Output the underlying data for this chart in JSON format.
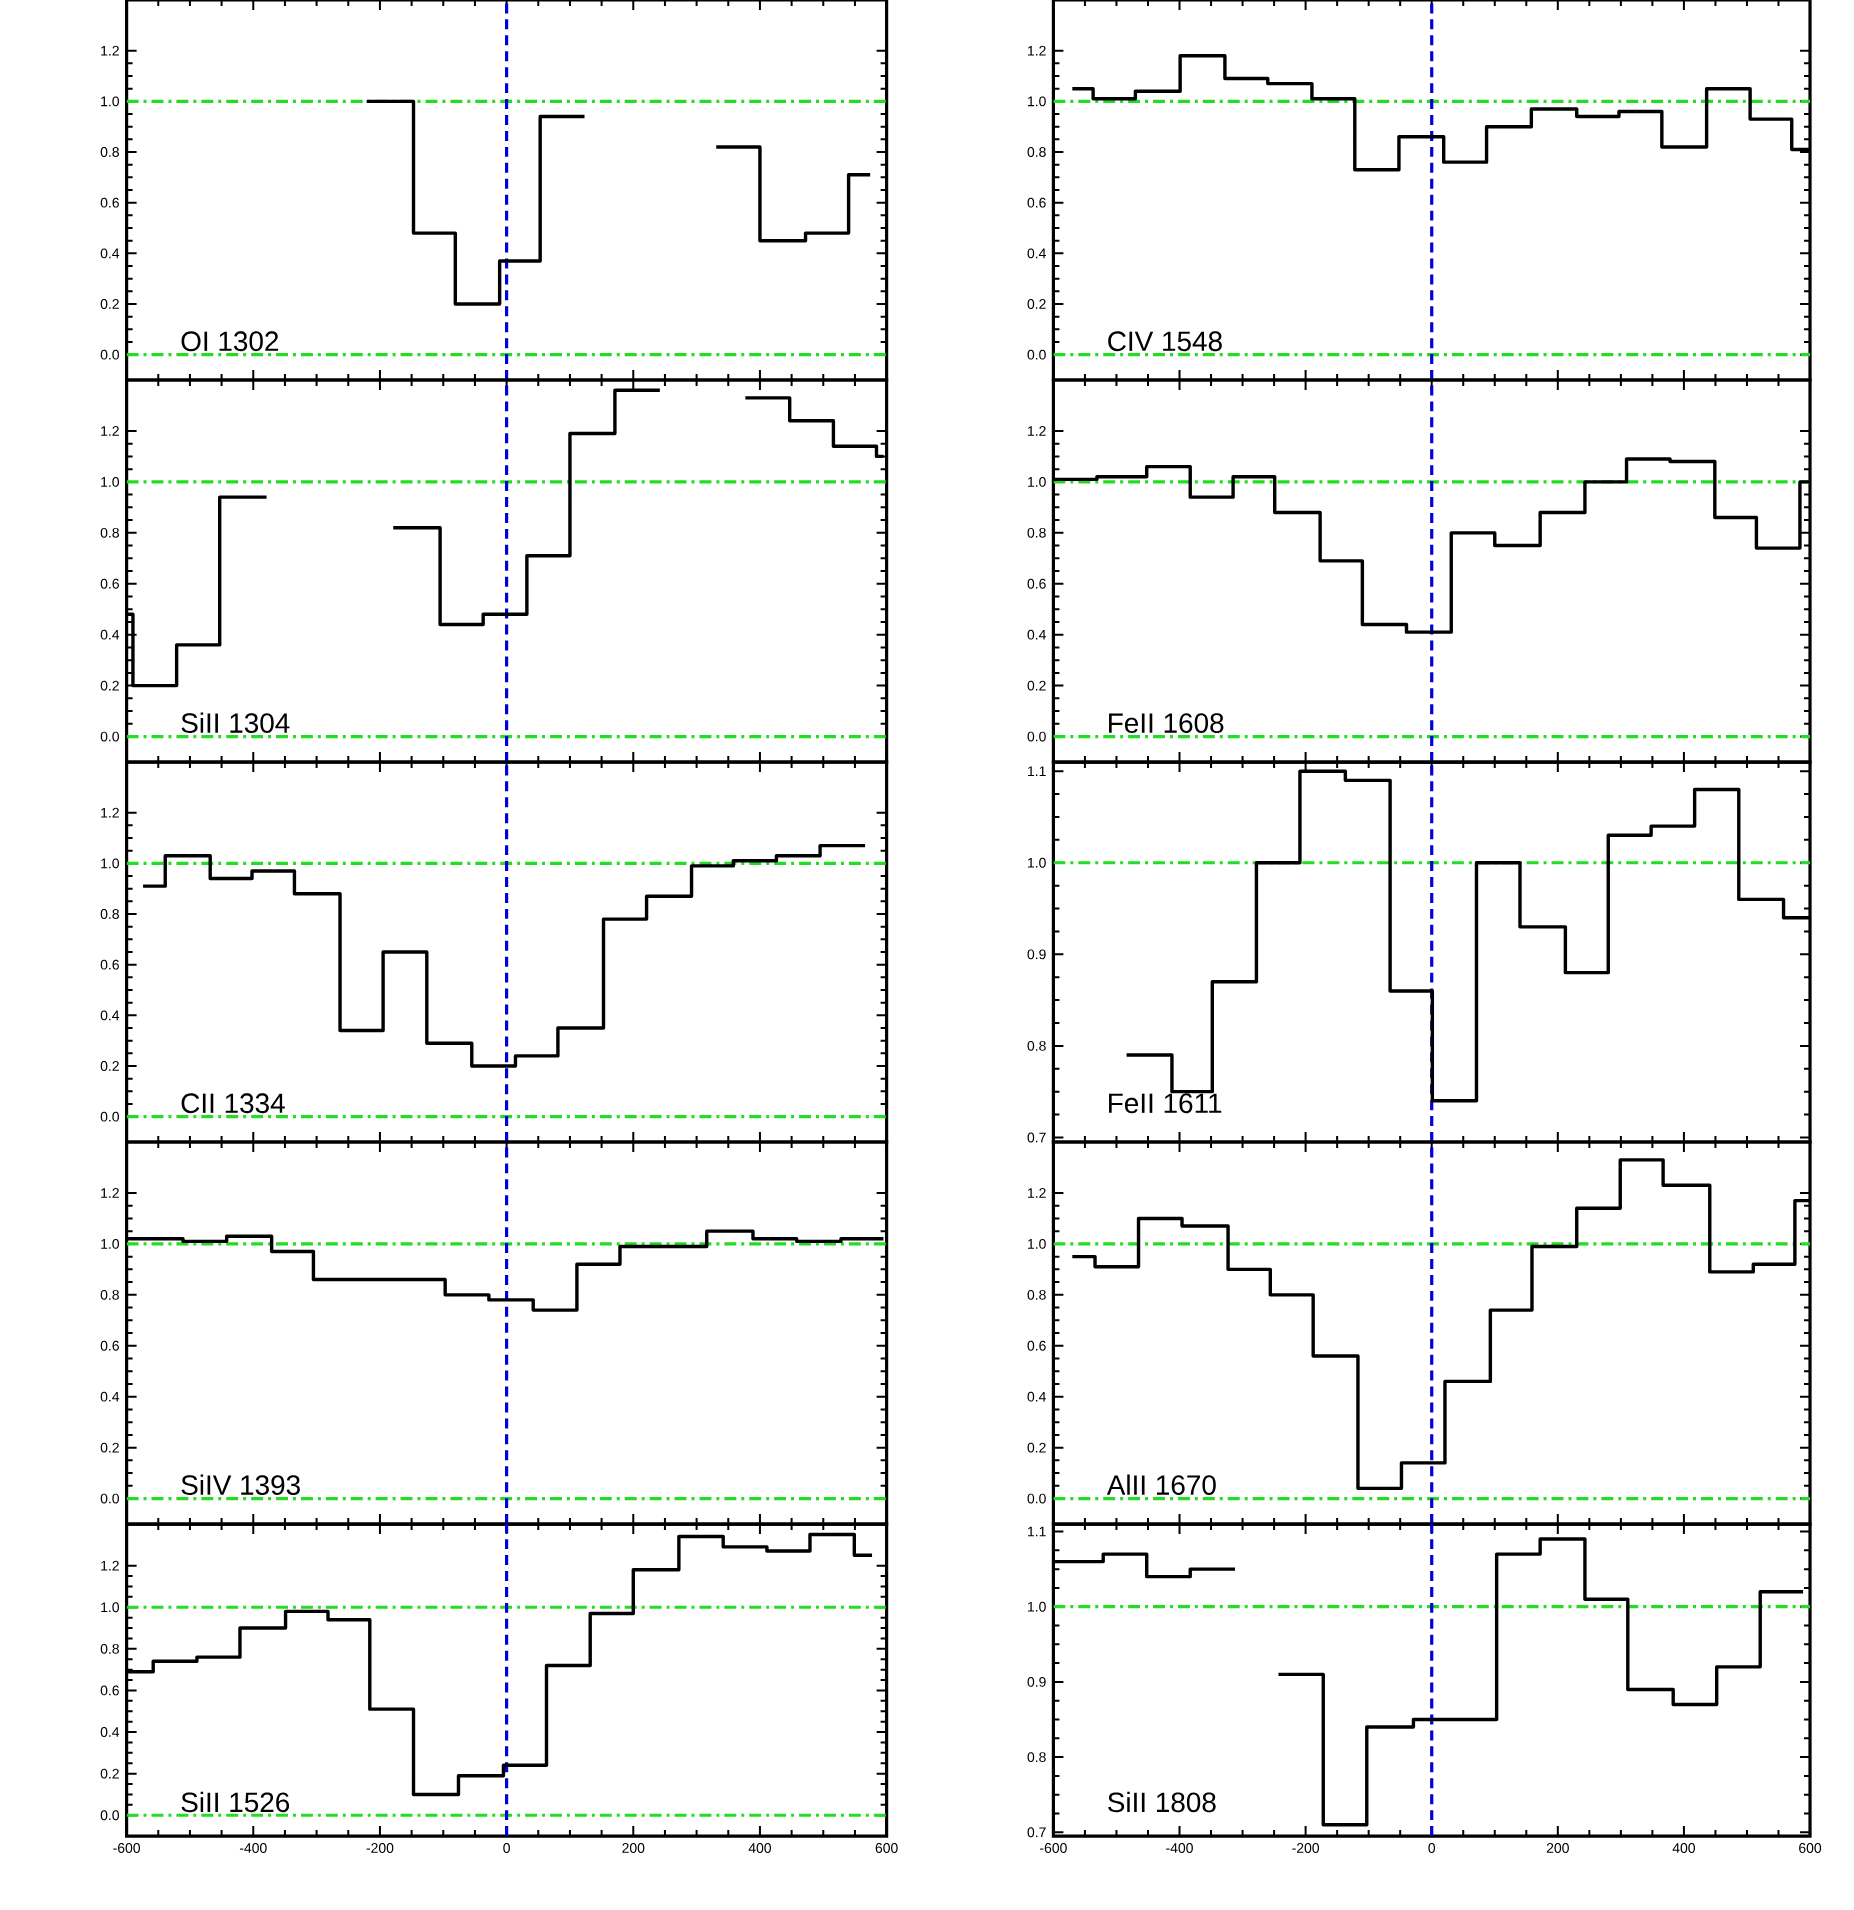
{
  "chart_data": [
    {
      "type": "step",
      "annotations": [
        "OI 1302"
      ],
      "color": "#000000",
      "x": [
        -221,
        -147,
        -81,
        -11,
        53,
        123,
        331,
        400,
        472,
        540,
        574
      ],
      "values": [
        1.0,
        0.48,
        0.2,
        0.37,
        0.94,
        null,
        0.82,
        0.45,
        0.48,
        0.71,
        0.71
      ],
      "xlim": [
        -600,
        600
      ],
      "xticks": [
        -600,
        -400,
        -200,
        0,
        200,
        400,
        600
      ],
      "ylim": [
        -0.1,
        1.4
      ],
      "yticks": [
        {
          "value": 0,
          "label": "0.0"
        },
        {
          "value": 0.2,
          "label": "0.2"
        },
        {
          "value": 0.4,
          "label": "0.4"
        },
        {
          "value": 0.6,
          "label": "0.6"
        },
        {
          "value": 0.8,
          "label": "0.8"
        },
        {
          "value": 1,
          "label": "1.0"
        },
        {
          "value": 1.2,
          "label": "1.2"
        }
      ],
      "tick_labels": "y",
      "ref_lines": [
        {
          "axis": "y",
          "value": 1,
          "color": "#22dd22",
          "line_style": "dashdot"
        },
        {
          "axis": "y",
          "value": 0,
          "color": "#22dd22",
          "line_style": "dashdot"
        },
        {
          "axis": "x",
          "value": 0,
          "color": "#0000dd",
          "line_style": "dashed"
        }
      ]
    },
    {
      "type": "step",
      "annotations": [
        "CIV 1548"
      ],
      "color": "#000000",
      "x": [
        -570,
        -537,
        -470,
        -399,
        -328,
        -260,
        -190,
        -122,
        -52,
        19,
        87,
        158,
        230,
        297,
        365,
        436,
        505,
        571,
        600
      ],
      "values": [
        1.05,
        1.01,
        1.04,
        1.18,
        1.09,
        1.07,
        1.01,
        0.73,
        0.86,
        0.76,
        0.9,
        0.97,
        0.94,
        0.96,
        0.82,
        1.05,
        0.93,
        0.81,
        0.81
      ],
      "xlim": [
        -600,
        600
      ],
      "xticks": [
        -600,
        -400,
        -200,
        0,
        200,
        400,
        600
      ],
      "ylim": [
        -0.1,
        1.4
      ],
      "yticks": [
        {
          "value": 0,
          "label": "0.0"
        },
        {
          "value": 0.2,
          "label": "0.2"
        },
        {
          "value": 0.4,
          "label": "0.4"
        },
        {
          "value": 0.6,
          "label": "0.6"
        },
        {
          "value": 0.8,
          "label": "0.8"
        },
        {
          "value": 1,
          "label": "1.0"
        },
        {
          "value": 1.2,
          "label": "1.2"
        }
      ],
      "tick_labels": "y",
      "ref_lines": [
        {
          "axis": "y",
          "value": 1,
          "color": "#22dd22",
          "line_style": "dashdot"
        },
        {
          "axis": "y",
          "value": 0,
          "color": "#22dd22",
          "line_style": "dashdot"
        },
        {
          "axis": "x",
          "value": 0,
          "color": "#0000dd",
          "line_style": "dashed"
        }
      ]
    },
    {
      "type": "step",
      "annotations": [
        "SiII 1304"
      ],
      "color": "#000000",
      "x": [
        -600,
        -590,
        -521,
        -453,
        -379,
        -179,
        -105,
        -37,
        32,
        100,
        171,
        242,
        377,
        447,
        516,
        584,
        595
      ],
      "values": [
        0.48,
        0.2,
        0.36,
        0.94,
        null,
        0.82,
        0.44,
        0.48,
        0.71,
        1.19,
        1.36,
        null,
        1.33,
        1.24,
        1.14,
        1.1,
        1.1
      ],
      "xlim": [
        -600,
        600
      ],
      "xticks": [
        -600,
        -400,
        -200,
        0,
        200,
        400,
        600
      ],
      "ylim": [
        -0.1,
        1.4
      ],
      "yticks": [
        {
          "value": 0,
          "label": "0.0"
        },
        {
          "value": 0.2,
          "label": "0.2"
        },
        {
          "value": 0.4,
          "label": "0.4"
        },
        {
          "value": 0.6,
          "label": "0.6"
        },
        {
          "value": 0.8,
          "label": "0.8"
        },
        {
          "value": 1,
          "label": "1.0"
        },
        {
          "value": 1.2,
          "label": "1.2"
        }
      ],
      "tick_labels": "y",
      "ref_lines": [
        {
          "axis": "y",
          "value": 1,
          "color": "#22dd22",
          "line_style": "dashdot"
        },
        {
          "axis": "y",
          "value": 0,
          "color": "#22dd22",
          "line_style": "dashdot"
        },
        {
          "axis": "x",
          "value": 0,
          "color": "#0000dd",
          "line_style": "dashed"
        }
      ]
    },
    {
      "type": "step",
      "annotations": [
        "FeII 1608"
      ],
      "color": "#000000",
      "x": [
        -600,
        -531,
        -452,
        -383,
        -315,
        -249,
        -177,
        -110,
        -40,
        31,
        100,
        172,
        243,
        309,
        378,
        449,
        515,
        584,
        600
      ],
      "values": [
        1.01,
        1.02,
        1.06,
        0.94,
        1.02,
        0.88,
        0.69,
        0.44,
        0.41,
        0.8,
        0.75,
        0.88,
        1.0,
        1.09,
        1.08,
        0.86,
        0.74,
        1.0,
        1.0
      ],
      "xlim": [
        -600,
        600
      ],
      "xticks": [
        -600,
        -400,
        -200,
        0,
        200,
        400,
        600
      ],
      "ylim": [
        -0.1,
        1.4
      ],
      "yticks": [
        {
          "value": 0,
          "label": "0.0"
        },
        {
          "value": 0.2,
          "label": "0.2"
        },
        {
          "value": 0.4,
          "label": "0.4"
        },
        {
          "value": 0.6,
          "label": "0.6"
        },
        {
          "value": 0.8,
          "label": "0.8"
        },
        {
          "value": 1,
          "label": "1.0"
        },
        {
          "value": 1.2,
          "label": "1.2"
        }
      ],
      "tick_labels": "y",
      "ref_lines": [
        {
          "axis": "y",
          "value": 1,
          "color": "#22dd22",
          "line_style": "dashdot"
        },
        {
          "axis": "y",
          "value": 0,
          "color": "#22dd22",
          "line_style": "dashdot"
        },
        {
          "axis": "x",
          "value": 0,
          "color": "#0000dd",
          "line_style": "dashed"
        }
      ]
    },
    {
      "type": "step",
      "annotations": [
        "CII 1334"
      ],
      "color": "#000000",
      "x": [
        -574,
        -539,
        -468,
        -402,
        -335,
        -263,
        -195,
        -126,
        -55,
        14,
        81,
        153,
        221,
        292,
        358,
        426,
        495,
        566
      ],
      "values": [
        0.91,
        1.03,
        0.94,
        0.97,
        0.88,
        0.34,
        0.65,
        0.29,
        0.2,
        0.24,
        0.35,
        0.78,
        0.87,
        0.99,
        1.01,
        1.03,
        1.07,
        1.07
      ],
      "xlim": [
        -600,
        600
      ],
      "xticks": [
        -600,
        -400,
        -200,
        0,
        200,
        400,
        600
      ],
      "ylim": [
        -0.1,
        1.4
      ],
      "yticks": [
        {
          "value": 0,
          "label": "0.0"
        },
        {
          "value": 0.2,
          "label": "0.2"
        },
        {
          "value": 0.4,
          "label": "0.4"
        },
        {
          "value": 0.6,
          "label": "0.6"
        },
        {
          "value": 0.8,
          "label": "0.8"
        },
        {
          "value": 1,
          "label": "1.0"
        },
        {
          "value": 1.2,
          "label": "1.2"
        }
      ],
      "tick_labels": "y",
      "ref_lines": [
        {
          "axis": "y",
          "value": 1,
          "color": "#22dd22",
          "line_style": "dashdot"
        },
        {
          "axis": "y",
          "value": 0,
          "color": "#22dd22",
          "line_style": "dashdot"
        },
        {
          "axis": "x",
          "value": 0,
          "color": "#0000dd",
          "line_style": "dashed"
        }
      ]
    },
    {
      "type": "step",
      "annotations": [
        "FeII 1611"
      ],
      "color": "#000000",
      "x": [
        -484,
        -412,
        -348,
        -278,
        -209,
        -137,
        -66,
        1,
        71,
        140,
        212,
        280,
        348,
        417,
        487,
        558,
        600
      ],
      "values": [
        0.79,
        0.75,
        0.87,
        1.0,
        1.1,
        1.09,
        0.86,
        0.74,
        1.0,
        0.93,
        0.88,
        1.03,
        1.04,
        1.08,
        0.96,
        0.94,
        0.94
      ],
      "xlim": [
        -600,
        600
      ],
      "xticks": [
        -600,
        -400,
        -200,
        0,
        200,
        400,
        600
      ],
      "ylim": [
        0.695,
        1.11
      ],
      "yticks": [
        {
          "value": 0.7,
          "label": "0.7"
        },
        {
          "value": 0.8,
          "label": "0.8"
        },
        {
          "value": 0.9,
          "label": "0.9"
        },
        {
          "value": 1,
          "label": "1.0"
        },
        {
          "value": 1.1,
          "label": "1.1"
        }
      ],
      "tick_labels": "y",
      "ref_lines": [
        {
          "axis": "y",
          "value": 1,
          "color": "#22dd22",
          "line_style": "dashdot"
        },
        {
          "axis": "x",
          "value": 0,
          "color": "#0000dd",
          "line_style": "dashed"
        }
      ]
    },
    {
      "type": "step",
      "annotations": [
        "SiIV 1393"
      ],
      "color": "#000000",
      "x": [
        -600,
        -511,
        -442,
        -371,
        -305,
        -97,
        -28,
        42,
        111,
        179,
        316,
        389,
        458,
        528,
        595
      ],
      "values": [
        1.02,
        1.01,
        1.03,
        0.97,
        0.86,
        0.8,
        0.78,
        0.74,
        0.92,
        0.99,
        1.05,
        1.02,
        1.01,
        1.02,
        1.02
      ],
      "xlim": [
        -600,
        600
      ],
      "xticks": [
        -600,
        -400,
        -200,
        0,
        200,
        400,
        600
      ],
      "ylim": [
        -0.1,
        1.4
      ],
      "yticks": [
        {
          "value": 0,
          "label": "0.0"
        },
        {
          "value": 0.2,
          "label": "0.2"
        },
        {
          "value": 0.4,
          "label": "0.4"
        },
        {
          "value": 0.6,
          "label": "0.6"
        },
        {
          "value": 0.8,
          "label": "0.8"
        },
        {
          "value": 1,
          "label": "1.0"
        },
        {
          "value": 1.2,
          "label": "1.2"
        }
      ],
      "tick_labels": "y",
      "ref_lines": [
        {
          "axis": "y",
          "value": 1,
          "color": "#22dd22",
          "line_style": "dashdot"
        },
        {
          "axis": "y",
          "value": 0,
          "color": "#22dd22",
          "line_style": "dashdot"
        },
        {
          "axis": "x",
          "value": 0,
          "color": "#0000dd",
          "line_style": "dashed"
        }
      ]
    },
    {
      "type": "step",
      "annotations": [
        "AlII 1670"
      ],
      "color": "#000000",
      "x": [
        -570,
        -534,
        -465,
        -396,
        -323,
        -256,
        -188,
        -117,
        -48,
        21,
        93,
        159,
        230,
        299,
        367,
        441,
        510,
        576,
        600
      ],
      "values": [
        0.95,
        0.91,
        1.1,
        1.07,
        0.9,
        0.8,
        0.56,
        0.04,
        0.14,
        0.46,
        0.74,
        0.99,
        1.14,
        1.33,
        1.23,
        0.89,
        0.92,
        1.17,
        1.17
      ],
      "xlim": [
        -600,
        600
      ],
      "xticks": [
        -600,
        -400,
        -200,
        0,
        200,
        400,
        600
      ],
      "ylim": [
        -0.1,
        1.4
      ],
      "yticks": [
        {
          "value": 0,
          "label": "0.0"
        },
        {
          "value": 0.2,
          "label": "0.2"
        },
        {
          "value": 0.4,
          "label": "0.4"
        },
        {
          "value": 0.6,
          "label": "0.6"
        },
        {
          "value": 0.8,
          "label": "0.8"
        },
        {
          "value": 1,
          "label": "1.0"
        },
        {
          "value": 1.2,
          "label": "1.2"
        }
      ],
      "tick_labels": "y",
      "ref_lines": [
        {
          "axis": "y",
          "value": 1,
          "color": "#22dd22",
          "line_style": "dashdot"
        },
        {
          "axis": "y",
          "value": 0,
          "color": "#22dd22",
          "line_style": "dashdot"
        },
        {
          "axis": "x",
          "value": 0,
          "color": "#0000dd",
          "line_style": "dashed"
        }
      ]
    },
    {
      "type": "step",
      "annotations": [
        "SiII 1526"
      ],
      "color": "#000000",
      "x": [
        -600,
        -558,
        -489,
        -421,
        -349,
        -282,
        -216,
        -147,
        -76,
        -5,
        63,
        132,
        200,
        272,
        342,
        411,
        479,
        549,
        577
      ],
      "values": [
        0.69,
        0.74,
        0.76,
        0.9,
        0.98,
        0.94,
        0.51,
        0.1,
        0.19,
        0.24,
        0.72,
        0.97,
        1.18,
        1.34,
        1.29,
        1.27,
        1.35,
        1.25,
        1.25
      ],
      "xlim": [
        -600,
        600
      ],
      "xticks": [
        -600,
        -400,
        -200,
        0,
        200,
        400,
        600
      ],
      "ylim": [
        -0.1,
        1.4
      ],
      "yticks": [
        {
          "value": 0,
          "label": "0.0"
        },
        {
          "value": 0.2,
          "label": "0.2"
        },
        {
          "value": 0.4,
          "label": "0.4"
        },
        {
          "value": 0.6,
          "label": "0.6"
        },
        {
          "value": 0.8,
          "label": "0.8"
        },
        {
          "value": 1,
          "label": "1.0"
        },
        {
          "value": 1.2,
          "label": "1.2"
        }
      ],
      "ref_lines": [
        {
          "axis": "y",
          "value": 1,
          "color": "#22dd22",
          "line_style": "dashdot"
        },
        {
          "axis": "y",
          "value": 0,
          "color": "#22dd22",
          "line_style": "dashdot"
        },
        {
          "axis": "x",
          "value": 0,
          "color": "#0000dd",
          "line_style": "dashed"
        }
      ]
    },
    {
      "type": "step",
      "annotations": [
        "SiII 1808"
      ],
      "color": "#000000",
      "x": [
        -600,
        -521,
        -452,
        -383,
        -312,
        -243,
        -172,
        -103,
        -29,
        34,
        103,
        172,
        243,
        311,
        383,
        452,
        521,
        589
      ],
      "values": [
        1.06,
        1.07,
        1.04,
        1.05,
        null,
        0.91,
        0.71,
        0.84,
        0.85,
        0.85,
        1.07,
        1.09,
        1.01,
        0.89,
        0.87,
        0.92,
        1.02,
        1.02
      ],
      "xlim": [
        -600,
        600
      ],
      "xticks": [
        -600,
        -400,
        -200,
        0,
        200,
        400,
        600
      ],
      "ylim": [
        0.695,
        1.11
      ],
      "yticks": [
        {
          "value": 0.7,
          "label": "0.7"
        },
        {
          "value": 0.8,
          "label": "0.8"
        },
        {
          "value": 0.9,
          "label": "0.9"
        },
        {
          "value": 1,
          "label": "1.0"
        },
        {
          "value": 1.1,
          "label": "1.1"
        }
      ],
      "ref_lines": [
        {
          "axis": "y",
          "value": 1,
          "color": "#22dd22",
          "line_style": "dashdot"
        },
        {
          "axis": "x",
          "value": 0,
          "color": "#0000dd",
          "line_style": "dashed"
        }
      ]
    }
  ]
}
